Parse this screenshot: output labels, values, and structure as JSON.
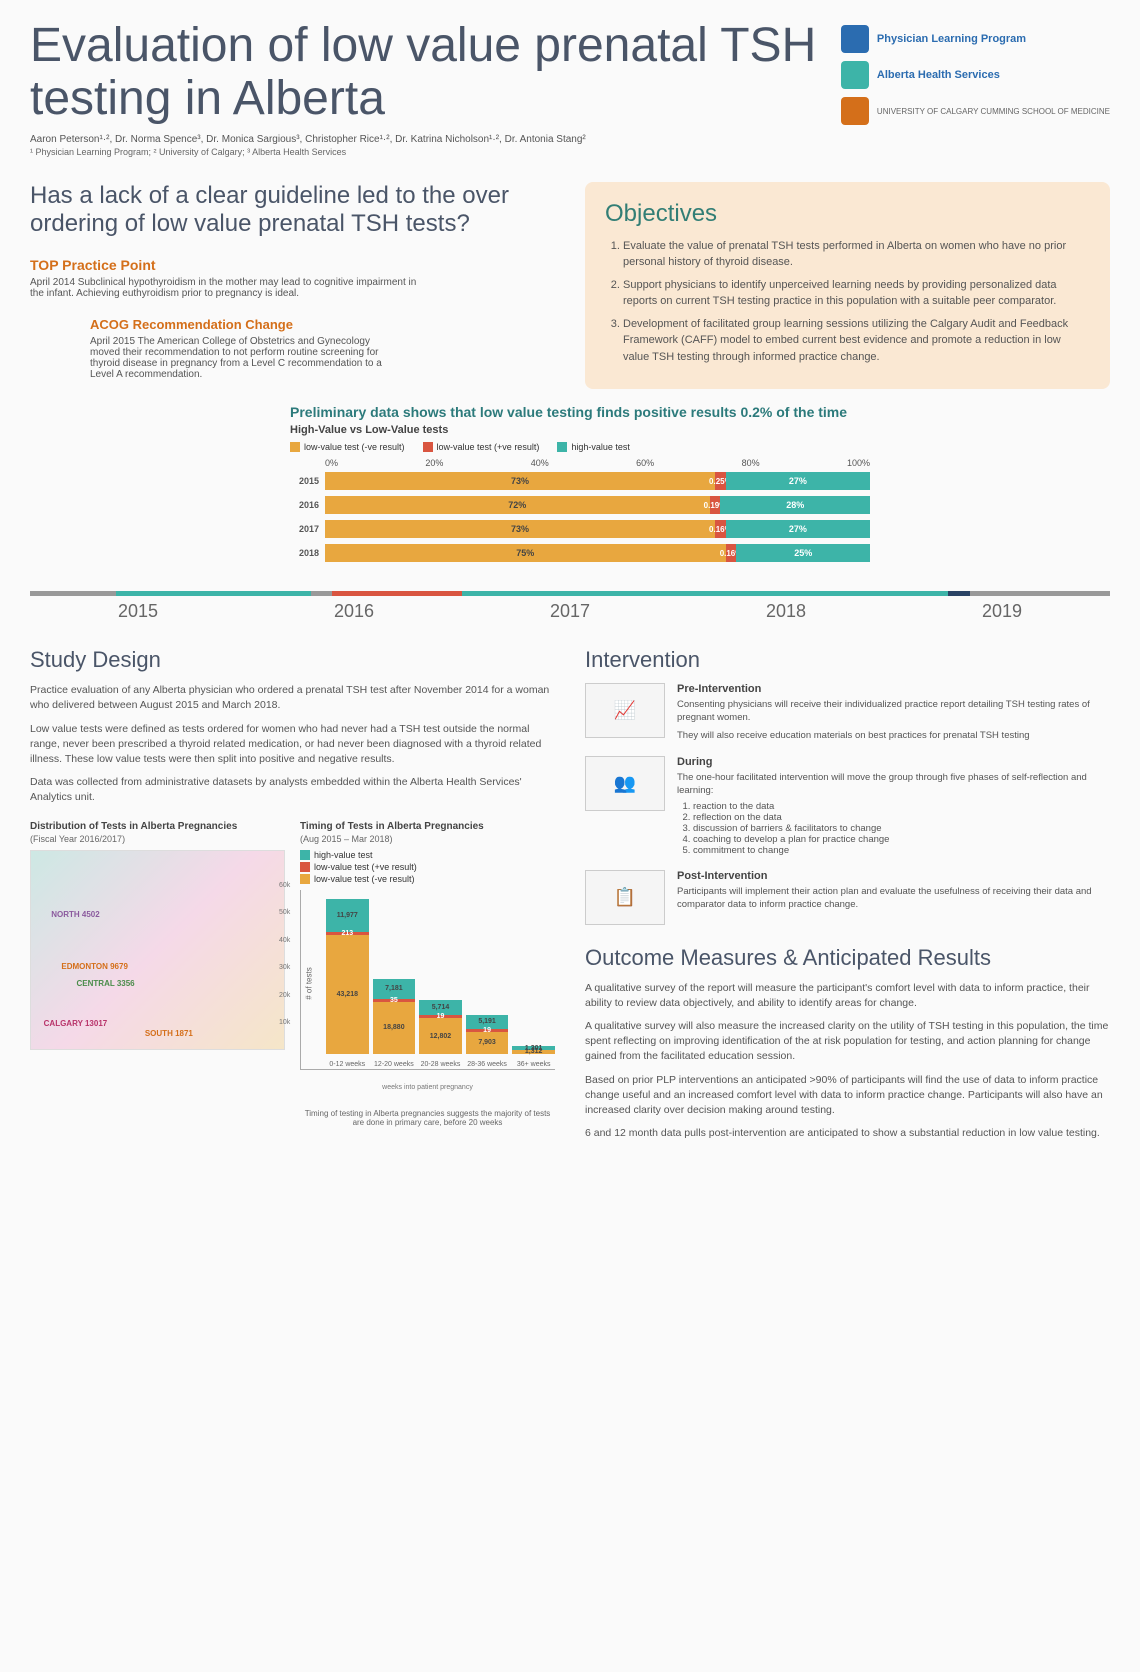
{
  "title": "Evaluation of low value prenatal TSH testing in Alberta",
  "authors": "Aaron Peterson¹·², Dr. Norma Spence³, Dr. Monica Sargious³, Christopher Rice¹·², Dr. Katrina Nicholson¹·², Dr. Antonia Stang²",
  "affiliations": "¹ Physician Learning Program; ² University of Calgary; ³ Alberta Health Services",
  "logos": {
    "plp": "Physician Learning Program",
    "ahs": "Alberta Health Services",
    "uc": "UNIVERSITY OF CALGARY CUMMING SCHOOL OF MEDICINE"
  },
  "question": "Has a lack of a clear guideline led to the over ordering of low value prenatal TSH tests?",
  "top_practice": {
    "title": "TOP Practice Point",
    "body": "April 2014 Subclinical hypothyroidism in the mother may lead to cognitive impairment in the infant. Achieving euthyroidism prior to pregnancy is ideal."
  },
  "acog": {
    "title": "ACOG Recommendation Change",
    "body": "April 2015 The American College of Obstetrics and Gynecology moved their recommendation to not perform routine screening for thyroid disease in pregnancy from a Level C recommendation to a Level A recommendation."
  },
  "objectives": {
    "title": "Objectives",
    "items": [
      "Evaluate the value of prenatal TSH tests performed in Alberta on women who have no prior personal history of thyroid disease.",
      "Support physicians to identify unperceived learning needs by providing personalized data reports on current TSH testing practice in this population with a suitable peer comparator.",
      "Development of facilitated group learning sessions utilizing the Calgary Audit and Feedback Framework (CAFF) model to embed current best evidence and promote a reduction in low value TSH testing through informed practice change."
    ]
  },
  "hv_chart": {
    "title": "Preliminary data shows that low value testing finds positive results 0.2% of the time",
    "subtitle": "High-Value vs Low-Value tests",
    "legend": {
      "lv_neg": "low-value test (-ve result)",
      "lv_pos": "low-value test (+ve result)",
      "hv": "high-value test"
    },
    "axis": [
      "0%",
      "20%",
      "40%",
      "60%",
      "80%",
      "100%"
    ],
    "rows": [
      {
        "year": "2015",
        "lv_neg": 73,
        "lv_neg_label": "73%",
        "lv_pos": 0.25,
        "lv_pos_label": "0.25%",
        "hv": 27,
        "hv_label": "27%"
      },
      {
        "year": "2016",
        "lv_neg": 72,
        "lv_neg_label": "72%",
        "lv_pos": 0.19,
        "lv_pos_label": "0.19%",
        "hv": 28,
        "hv_label": "28%"
      },
      {
        "year": "2017",
        "lv_neg": 73,
        "lv_neg_label": "73%",
        "lv_pos": 0.16,
        "lv_pos_label": "0.16%",
        "hv": 27,
        "hv_label": "27%"
      },
      {
        "year": "2018",
        "lv_neg": 75,
        "lv_neg_label": "75%",
        "lv_pos": 0.16,
        "lv_pos_label": "0.16%",
        "hv": 25,
        "hv_label": "25%"
      }
    ]
  },
  "timeline_years": [
    "2015",
    "2016",
    "2017",
    "2018",
    "2019"
  ],
  "study_design": {
    "title": "Study Design",
    "p1": "Practice evaluation of any Alberta physician who ordered a prenatal TSH test after November 2014 for a woman who delivered between August 2015 and March 2018.",
    "p2": "Low value tests were defined as tests ordered for women who had never had a TSH test outside the normal range, never been prescribed a thyroid related medication, or had never been diagnosed with a thyroid related illness. These low value tests were then split into positive and negative results.",
    "p3": "Data was collected from administrative datasets by analysts embedded within the Alberta Health Services' Analytics unit."
  },
  "distribution": {
    "title": "Distribution of Tests in Alberta Pregnancies",
    "sub": "(Fiscal Year 2016/2017)",
    "zones": {
      "north": "NORTH 4502",
      "edmonton": "EDMONTON 9679",
      "central": "CENTRAL 3356",
      "calgary": "CALGARY 13017",
      "south": "SOUTH 1871"
    }
  },
  "timing": {
    "title": "Timing of Tests in Alberta Pregnancies",
    "sub": "(Aug 2015 – Mar 2018)",
    "legend": {
      "hv": "high-value test",
      "lv_pos": "low-value test (+ve result)",
      "lv_neg": "low-value test (-ve result)"
    },
    "ylabel": "# of tests",
    "yticks": [
      "10k",
      "20k",
      "30k",
      "40k",
      "50k",
      "60k"
    ],
    "bars": [
      {
        "x": "0-12 weeks",
        "hv": 11977,
        "hv_label": "11,977",
        "pos": 213,
        "pos_label": "213",
        "neg": 43218,
        "neg_label": "43,218"
      },
      {
        "x": "12-20 weeks",
        "hv": 7181,
        "hv_label": "7,181",
        "pos": 35,
        "pos_label": "35",
        "neg": 18880,
        "neg_label": "18,880"
      },
      {
        "x": "20-28 weeks",
        "hv": 5714,
        "hv_label": "5,714",
        "pos": 19,
        "pos_label": "19",
        "neg": 12802,
        "neg_label": "12,802"
      },
      {
        "x": "28-36 weeks",
        "hv": 5191,
        "hv_label": "5,191",
        "pos": 19,
        "pos_label": "19",
        "neg": 7903,
        "neg_label": "7,903"
      },
      {
        "x": "36+ weeks",
        "hv": 1301,
        "hv_label": "1,301",
        "pos": 0,
        "pos_label": "",
        "neg": 1312,
        "neg_label": "1,312"
      }
    ],
    "xtitle": "weeks into patient pregnancy",
    "caption": "Timing of testing in Alberta pregnancies suggests the majority of tests are done in primary care, before 20 weeks"
  },
  "intervention": {
    "title": "Intervention",
    "pre": {
      "title": "Pre-Intervention",
      "body": "Consenting physicians will receive their individualized practice report detailing TSH testing rates of pregnant women.",
      "body2": "They will also receive education materials on best practices for prenatal TSH testing"
    },
    "during": {
      "title": "During",
      "body": "The one-hour facilitated intervention will move the group through five phases of self-reflection and learning:",
      "items": [
        "reaction to the data",
        "reflection on the data",
        "discussion of barriers & facilitators to change",
        "coaching to develop a plan for practice change",
        "commitment to change"
      ]
    },
    "post": {
      "title": "Post-Intervention",
      "body": "Participants will implement their action plan and evaluate the usefulness of receiving their data and comparator data to inform practice change."
    }
  },
  "outcomes": {
    "title": "Outcome Measures & Anticipated Results",
    "p1": "A qualitative survey of the report will measure the participant's comfort level with data to inform practice, their ability to review data objectively, and ability to identify areas for change.",
    "p2": "A qualitative survey will also measure the increased clarity on the utility of TSH testing in this population, the time spent reflecting on improving identification of the at risk population for testing, and action planning for change gained from the facilitated education session.",
    "p3": "Based on prior PLP interventions an anticipated >90% of participants will find the use of data to inform practice change useful and an increased comfort level with data to inform practice change. Participants will also have an increased clarity over decision making around testing.",
    "p4": "6 and 12 month data pulls post-intervention are anticipated to show a substantial reduction in low value testing."
  },
  "colors": {
    "orange": "#e8a73f",
    "red": "#d95540",
    "teal": "#3db4a8",
    "title": "#4a5568",
    "accent_orange": "#d46f1a",
    "obj_bg": "#fae8d3"
  }
}
